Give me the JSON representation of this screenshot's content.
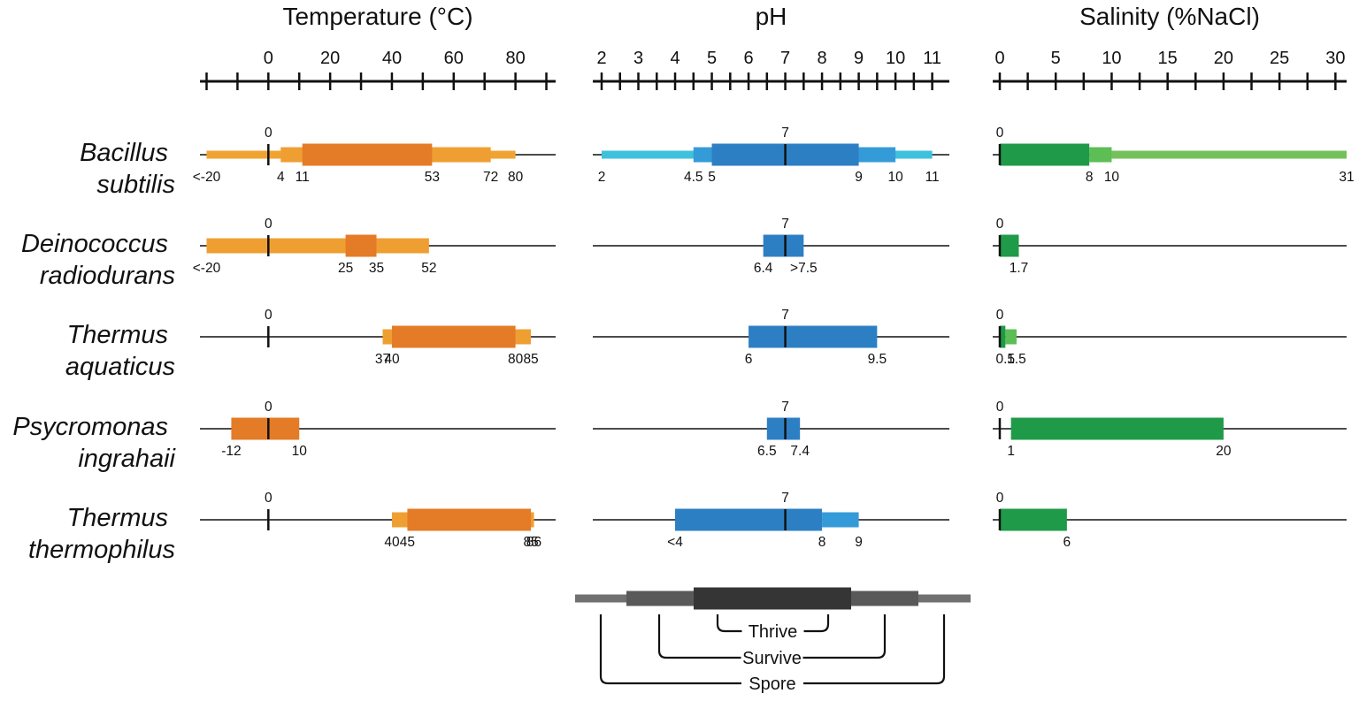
{
  "chart_data": {
    "type": "range-bar",
    "species": [
      {
        "line1": "Bacillus",
        "line2": "subtilis"
      },
      {
        "line1": "Deinococcus",
        "line2": "radiodurans"
      },
      {
        "line1": "Thermus",
        "line2": "aquaticus"
      },
      {
        "line1": "Psycromonas",
        "line2": "ingrahaii"
      },
      {
        "line1": "Thermus",
        "line2": "thermophilus"
      }
    ],
    "panels": [
      {
        "title": "Temperature (°C)",
        "axis": {
          "min": -21,
          "max": 93,
          "major_ticks": [
            0,
            20,
            40,
            60,
            80
          ],
          "minor_ticks": [
            -20,
            -10,
            10,
            30,
            50,
            70,
            90
          ]
        },
        "reference": 0,
        "reference_label": "0",
        "colors": {
          "spore": "#f0a330",
          "survive": "#ef9f32",
          "thrive": "#e47b27"
        },
        "rows": [
          {
            "spore": [
              -20,
              80
            ],
            "survive": [
              4,
              72
            ],
            "thrive": [
              11,
              53
            ],
            "labels": [
              {
                "v": -20,
                "t": "<-20"
              },
              {
                "v": 4,
                "t": "4"
              },
              {
                "v": 11,
                "t": "11"
              },
              {
                "v": 53,
                "t": "53"
              },
              {
                "v": 72,
                "t": "72"
              },
              {
                "v": 80,
                "t": "80"
              }
            ]
          },
          {
            "survive": [
              -20,
              52
            ],
            "thrive": [
              25,
              35
            ],
            "labels": [
              {
                "v": -20,
                "t": "<-20"
              },
              {
                "v": 25,
                "t": "25"
              },
              {
                "v": 35,
                "t": "35"
              },
              {
                "v": 52,
                "t": "52"
              }
            ]
          },
          {
            "survive": [
              37,
              85
            ],
            "thrive": [
              40,
              80
            ],
            "labels": [
              {
                "v": 37,
                "t": "37"
              },
              {
                "v": 40,
                "t": "40"
              },
              {
                "v": 80,
                "t": "80"
              },
              {
                "v": 85,
                "t": "85"
              }
            ]
          },
          {
            "thrive": [
              -12,
              10
            ],
            "labels": [
              {
                "v": -12,
                "t": "-12"
              },
              {
                "v": 10,
                "t": "10"
              }
            ]
          },
          {
            "survive": [
              40,
              86
            ],
            "thrive": [
              45,
              85
            ],
            "labels": [
              {
                "v": 40,
                "t": "40"
              },
              {
                "v": 45,
                "t": "45"
              },
              {
                "v": 85,
                "t": "85"
              },
              {
                "v": 86,
                "t": "86"
              }
            ]
          }
        ]
      },
      {
        "title": "pH",
        "axis": {
          "min": 2,
          "max": 11.25,
          "major_ticks": [
            2,
            3,
            4,
            5,
            6,
            7,
            8,
            9,
            10,
            11
          ],
          "minor_ticks": [
            2.5,
            3.5,
            4.5,
            5.5,
            6.5,
            7.5,
            8.5,
            9.5,
            10.5
          ]
        },
        "reference": 7,
        "reference_label": "7",
        "colors": {
          "spore": "#3ec1dc",
          "survive": "#359bd8",
          "thrive": "#2d7fc4"
        },
        "rows": [
          {
            "spore": [
              2,
              11
            ],
            "survive": [
              4.5,
              10
            ],
            "thrive": [
              5,
              9
            ],
            "labels": [
              {
                "v": 2,
                "t": "2"
              },
              {
                "v": 4.5,
                "t": "4.5"
              },
              {
                "v": 5,
                "t": "5"
              },
              {
                "v": 9,
                "t": "9"
              },
              {
                "v": 10,
                "t": "10"
              },
              {
                "v": 11,
                "t": "11"
              }
            ]
          },
          {
            "thrive": [
              6.4,
              7.5
            ],
            "labels": [
              {
                "v": 6.4,
                "t": "6.4"
              },
              {
                "v": 7.5,
                "t": ">7.5"
              }
            ]
          },
          {
            "thrive": [
              6,
              9.5
            ],
            "labels": [
              {
                "v": 6,
                "t": "6"
              },
              {
                "v": 9.5,
                "t": "9.5"
              }
            ]
          },
          {
            "thrive": [
              6.5,
              7.4
            ],
            "labels": [
              {
                "v": 6.5,
                "t": "6.5"
              },
              {
                "v": 7.4,
                "t": "7.4"
              }
            ]
          },
          {
            "survive": [
              8,
              9
            ],
            "thrive": [
              4,
              8
            ],
            "labels": [
              {
                "v": 4,
                "t": "<4"
              },
              {
                "v": 8,
                "t": "8"
              },
              {
                "v": 9,
                "t": "9"
              }
            ]
          }
        ]
      },
      {
        "title": "Salinity (%NaCl)",
        "axis": {
          "min": 0,
          "max": 31,
          "major_ticks": [
            0,
            5,
            10,
            15,
            20,
            25,
            30
          ],
          "minor_ticks": [
            2.5,
            7.5,
            12.5,
            17.5,
            22.5,
            27.5
          ]
        },
        "reference": 0,
        "reference_label": "0",
        "colors": {
          "spore": "#74c15a",
          "survive": "#5cbe54",
          "thrive": "#1f9a48"
        },
        "rows": [
          {
            "spore": [
              10,
              31
            ],
            "survive": [
              8,
              10
            ],
            "thrive": [
              0,
              8
            ],
            "labels": [
              {
                "v": 8,
                "t": "8"
              },
              {
                "v": 10,
                "t": "10"
              },
              {
                "v": 31,
                "t": "31"
              }
            ]
          },
          {
            "thrive": [
              0,
              1.7
            ],
            "labels": [
              {
                "v": 1.7,
                "t": "1.7"
              }
            ]
          },
          {
            "survive": [
              0.5,
              1.5
            ],
            "thrive": [
              0,
              0.5
            ],
            "labels": [
              {
                "v": 0.5,
                "t": "0.5"
              },
              {
                "v": 1.5,
                "t": "1.5"
              }
            ]
          },
          {
            "thrive": [
              1,
              20
            ],
            "hide_ref_label": false,
            "labels": [
              {
                "v": 1,
                "t": "1"
              },
              {
                "v": 20,
                "t": "20"
              }
            ]
          },
          {
            "thrive": [
              0,
              6
            ],
            "labels": [
              {
                "v": 6,
                "t": "6"
              }
            ]
          }
        ]
      }
    ],
    "legend": {
      "colors": {
        "spore": "#707070",
        "survive": "#595959",
        "thrive": "#353535"
      },
      "labels": {
        "thrive": "Thrive",
        "survive": "Survive",
        "spore": "Spore"
      }
    }
  }
}
